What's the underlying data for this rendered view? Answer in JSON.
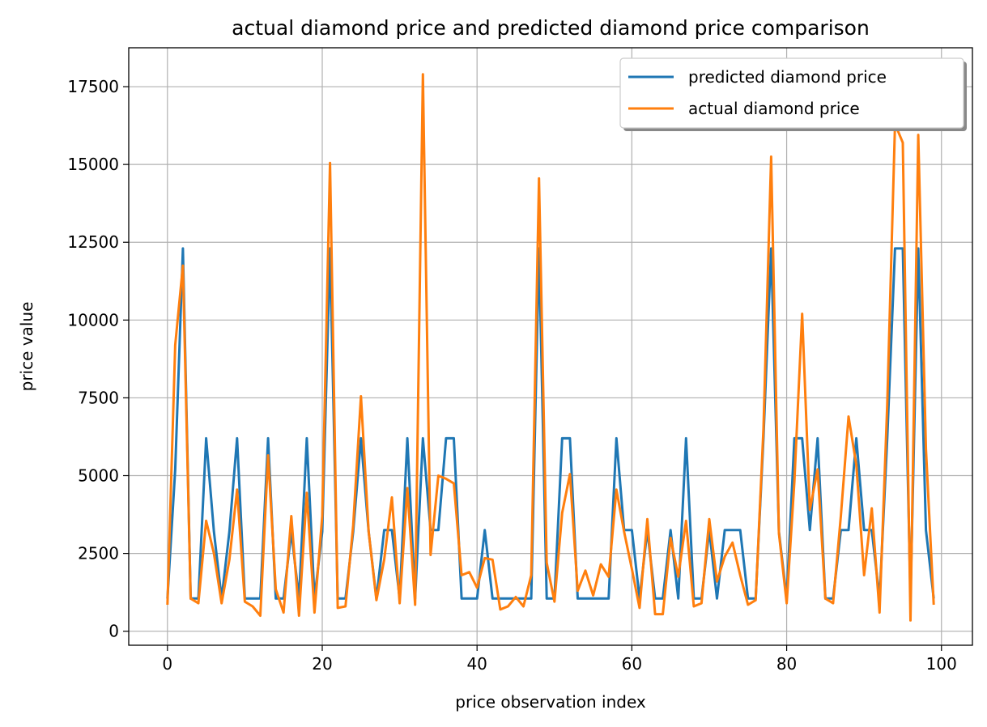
{
  "chart_data": {
    "type": "line",
    "title": "actual diamond price and predicted diamond price comparison",
    "xlabel": "price observation index",
    "ylabel": "price value",
    "xlim": [
      -5,
      104
    ],
    "ylim": [
      -450,
      18750
    ],
    "xticks": [
      0,
      20,
      40,
      60,
      80,
      100
    ],
    "yticks": [
      0,
      2500,
      5000,
      7500,
      10000,
      12500,
      15000,
      17500
    ],
    "grid": true,
    "legend": "top-right",
    "x": [
      0,
      1,
      2,
      3,
      4,
      5,
      6,
      7,
      8,
      9,
      10,
      11,
      12,
      13,
      14,
      15,
      16,
      17,
      18,
      19,
      20,
      21,
      22,
      23,
      24,
      25,
      26,
      27,
      28,
      29,
      30,
      31,
      32,
      33,
      34,
      35,
      36,
      37,
      38,
      39,
      40,
      41,
      42,
      43,
      44,
      45,
      46,
      47,
      48,
      49,
      50,
      51,
      52,
      53,
      54,
      55,
      56,
      57,
      58,
      59,
      60,
      61,
      62,
      63,
      64,
      65,
      66,
      67,
      68,
      69,
      70,
      71,
      72,
      73,
      74,
      75,
      76,
      77,
      78,
      79,
      80,
      81,
      82,
      83,
      84,
      85,
      86,
      87,
      88,
      89,
      90,
      91,
      92,
      93,
      94,
      95,
      96,
      97,
      98,
      99
    ],
    "series": [
      {
        "name": "predicted diamond price",
        "color": "#1f77b4",
        "values": [
          1050,
          5200,
          12300,
          1050,
          1050,
          6200,
          3200,
          1050,
          3200,
          6200,
          1050,
          1050,
          1050,
          6200,
          1050,
          1050,
          3200,
          1050,
          6200,
          1050,
          3200,
          12300,
          1050,
          1050,
          3200,
          6200,
          3200,
          1050,
          3250,
          3250,
          1050,
          6200,
          1050,
          6200,
          3250,
          3250,
          6200,
          6200,
          1050,
          1050,
          1050,
          3250,
          1050,
          1050,
          1050,
          1050,
          1050,
          1050,
          12300,
          1050,
          1050,
          6200,
          6200,
          1050,
          1050,
          1050,
          1050,
          1050,
          6200,
          3250,
          3250,
          1050,
          3250,
          1050,
          1050,
          3250,
          1050,
          6200,
          1050,
          1050,
          3250,
          1050,
          3250,
          3250,
          3250,
          1050,
          1050,
          6200,
          12300,
          3200,
          1050,
          6200,
          6200,
          3250,
          6200,
          1050,
          1050,
          3250,
          3250,
          6200,
          3250,
          3250,
          1050,
          6200,
          12300,
          12300,
          1050,
          12300,
          3250,
          1050
        ]
      },
      {
        "name": "actual diamond price",
        "color": "#ff7f0e",
        "values": [
          850,
          9200,
          11750,
          1050,
          900,
          3550,
          2500,
          900,
          2300,
          4550,
          950,
          800,
          500,
          5650,
          1350,
          600,
          3700,
          500,
          4450,
          600,
          3700,
          15050,
          750,
          800,
          3400,
          7550,
          3200,
          1000,
          2300,
          4300,
          900,
          4600,
          850,
          17900,
          2450,
          5000,
          4900,
          4750,
          1800,
          1900,
          1400,
          2350,
          2300,
          700,
          800,
          1100,
          800,
          1800,
          14550,
          2200,
          950,
          3800,
          5050,
          1300,
          1950,
          1150,
          2150,
          1750,
          4550,
          3200,
          2000,
          750,
          3600,
          550,
          550,
          3000,
          1750,
          3550,
          800,
          900,
          3600,
          1600,
          2400,
          2850,
          1800,
          850,
          1000,
          6500,
          15250,
          3150,
          900,
          4800,
          10200,
          3900,
          5200,
          1050,
          900,
          3700,
          6900,
          5350,
          1800,
          3950,
          600,
          7300,
          16300,
          15700,
          350,
          15950,
          5850,
          850
        ]
      }
    ]
  }
}
